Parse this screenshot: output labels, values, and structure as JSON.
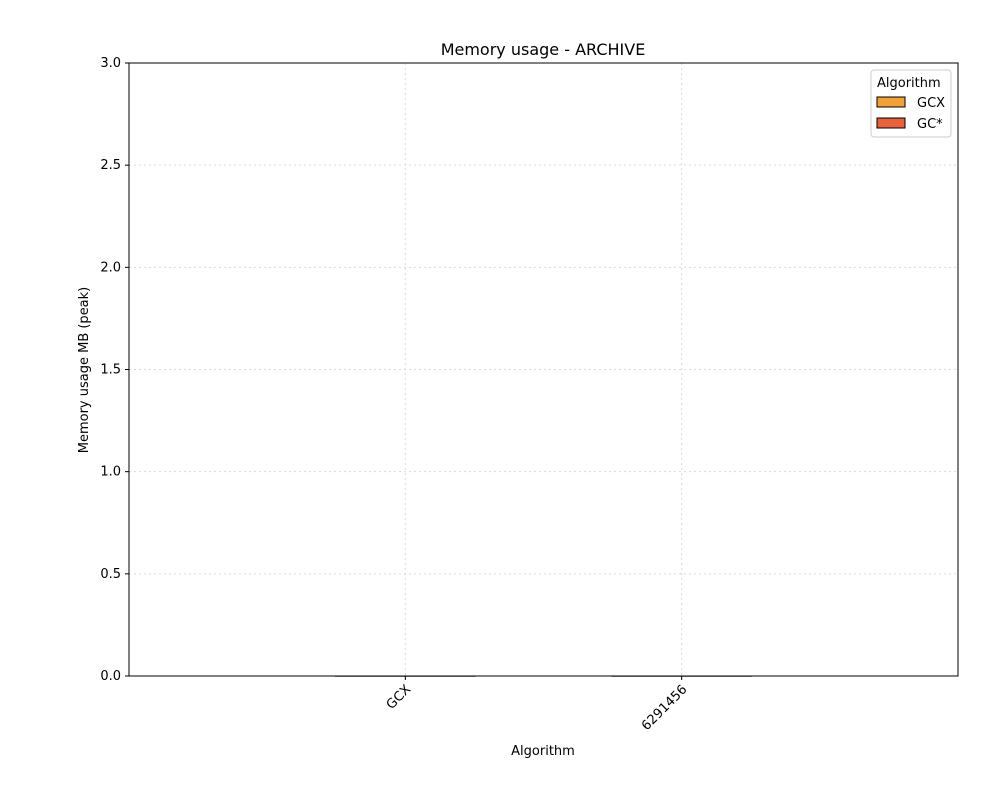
{
  "chart_data": {
    "type": "bar",
    "title": "Memory usage -  ARCHIVE",
    "xlabel": "Algorithm",
    "ylabel": "Memory usage MB (peak)",
    "categories": [
      "GCX",
      "6291456"
    ],
    "ylim": [
      0,
      3.0
    ],
    "yticks": [
      "0.0",
      "0.5",
      "1.0",
      "1.5",
      "2.0",
      "2.5",
      "3.0"
    ],
    "grid": true,
    "legend": {
      "title": "Algorithm",
      "placement": "top-right",
      "entries": [
        "GCX",
        "GC*"
      ]
    },
    "series": [
      {
        "name": "GCX",
        "values": [
          0,
          0
        ],
        "color": "#f0a13a"
      },
      {
        "name": "GC*",
        "values": [
          0,
          0
        ],
        "color": "#e8613e"
      }
    ],
    "colors": {
      "grid": "#d9d9d9",
      "axis": "#000000"
    }
  }
}
